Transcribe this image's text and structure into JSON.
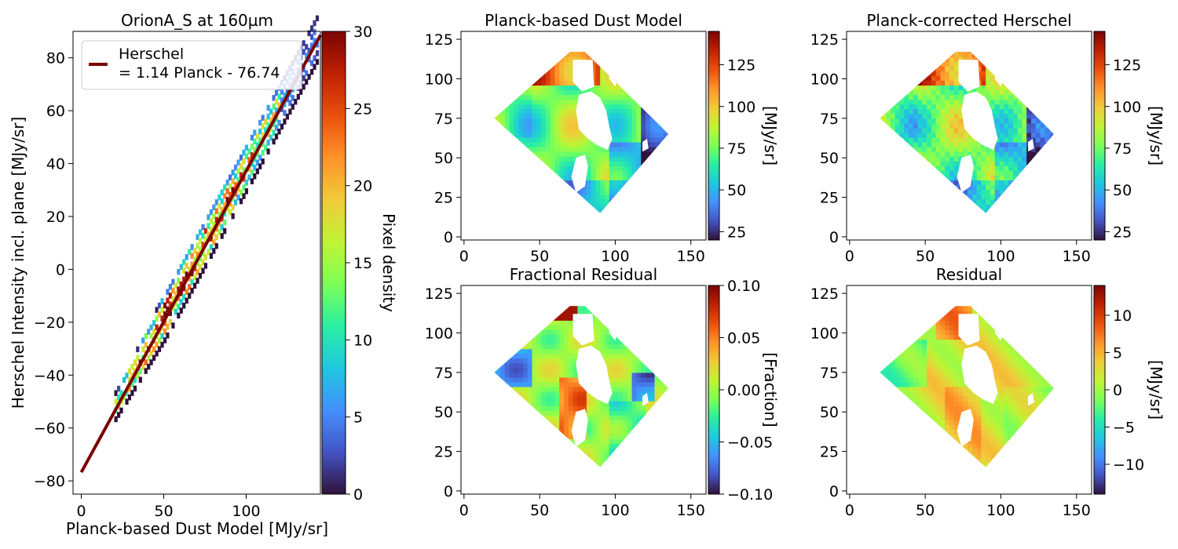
{
  "colormap_stops": [
    "#30123b",
    "#4454c4",
    "#4490fe",
    "#1fc8de",
    "#29efa2",
    "#7dff56",
    "#c1f334",
    "#f1ca3a",
    "#fe922a",
    "#ea4f0d",
    "#be2102",
    "#7a0403"
  ],
  "colors": {
    "fit_line": "#7a0000",
    "axes": "#000000"
  },
  "chart_data": [
    {
      "type": "heatmap",
      "title": "OrionA_S at 160µm",
      "xlabel": "Planck-based Dust Model [MJy/sr]",
      "ylabel": "Herschel Intensity incl. plane [MJy/sr]",
      "xlim": [
        -5,
        145
      ],
      "ylim": [
        -85,
        90
      ],
      "xticks": [
        0,
        50,
        100
      ],
      "yticks": [
        -80,
        -60,
        -40,
        -20,
        0,
        20,
        40,
        60,
        80
      ],
      "density_band": {
        "x_range": [
          20,
          143
        ],
        "slope": 1.14,
        "intercept": -76.74,
        "width": 9
      },
      "fit_line": {
        "label": "Herschel\n= 1.14 Planck - 76.74",
        "slope": 1.14,
        "intercept": -76.74,
        "x_range": [
          0,
          145
        ]
      },
      "legend": {
        "position": "top-left",
        "entries": [
          "Herschel",
          "= 1.14 Planck - 76.74"
        ]
      },
      "colorbar": {
        "label": "Pixel density",
        "range": [
          0,
          30
        ],
        "ticks": [
          0,
          5,
          10,
          15,
          20,
          25,
          30
        ]
      }
    },
    {
      "type": "heatmap",
      "title": "Planck-based Dust Model",
      "xlim": [
        -2,
        160
      ],
      "ylim": [
        -2,
        130
      ],
      "xticks": [
        0,
        50,
        100,
        150
      ],
      "yticks": [
        0,
        25,
        50,
        75,
        100,
        125
      ],
      "region": {
        "left": [
          20,
          75
        ],
        "top": [
          70,
          117
        ],
        "right": [
          135,
          65
        ],
        "bottom": [
          90,
          15
        ]
      },
      "colorbar": {
        "label": "[MJy/sr]",
        "range": [
          20,
          145
        ],
        "ticks": [
          25,
          50,
          75,
          100,
          125
        ]
      }
    },
    {
      "type": "heatmap",
      "title": "Planck-corrected Herschel",
      "xlim": [
        -2,
        160
      ],
      "ylim": [
        -2,
        130
      ],
      "xticks": [
        0,
        50,
        100,
        150
      ],
      "yticks": [
        0,
        25,
        50,
        75,
        100,
        125
      ],
      "region": {
        "left": [
          20,
          75
        ],
        "top": [
          70,
          117
        ],
        "right": [
          135,
          65
        ],
        "bottom": [
          90,
          15
        ]
      },
      "colorbar": {
        "label": "[MJy/sr]",
        "range": [
          20,
          145
        ],
        "ticks": [
          25,
          50,
          75,
          100,
          125
        ]
      }
    },
    {
      "type": "heatmap",
      "title": "Fractional Residual",
      "xlim": [
        -2,
        160
      ],
      "ylim": [
        -2,
        130
      ],
      "xticks": [
        0,
        50,
        100,
        150
      ],
      "yticks": [
        0,
        25,
        50,
        75,
        100,
        125
      ],
      "region": {
        "left": [
          20,
          75
        ],
        "top": [
          70,
          117
        ],
        "right": [
          135,
          65
        ],
        "bottom": [
          90,
          15
        ]
      },
      "colorbar": {
        "label": "[Fraction]",
        "range": [
          -0.1,
          0.1
        ],
        "ticks": [
          -0.1,
          -0.05,
          0.0,
          0.05,
          0.1
        ],
        "tick_labels": [
          "−0.10",
          "−0.05",
          "0.00",
          "0.05",
          "0.10"
        ]
      }
    },
    {
      "type": "heatmap",
      "title": "Residual",
      "xlim": [
        -2,
        160
      ],
      "ylim": [
        -2,
        130
      ],
      "xticks": [
        0,
        50,
        100,
        150
      ],
      "yticks": [
        0,
        25,
        50,
        75,
        100,
        125
      ],
      "region": {
        "left": [
          20,
          75
        ],
        "top": [
          70,
          117
        ],
        "right": [
          135,
          65
        ],
        "bottom": [
          90,
          15
        ]
      },
      "colorbar": {
        "label": "[MJy/sr]",
        "range": [
          -14,
          14
        ],
        "ticks": [
          -10,
          -5,
          0,
          5,
          10
        ],
        "tick_labels": [
          "−10",
          "−5",
          "0",
          "5",
          "10"
        ]
      }
    }
  ]
}
